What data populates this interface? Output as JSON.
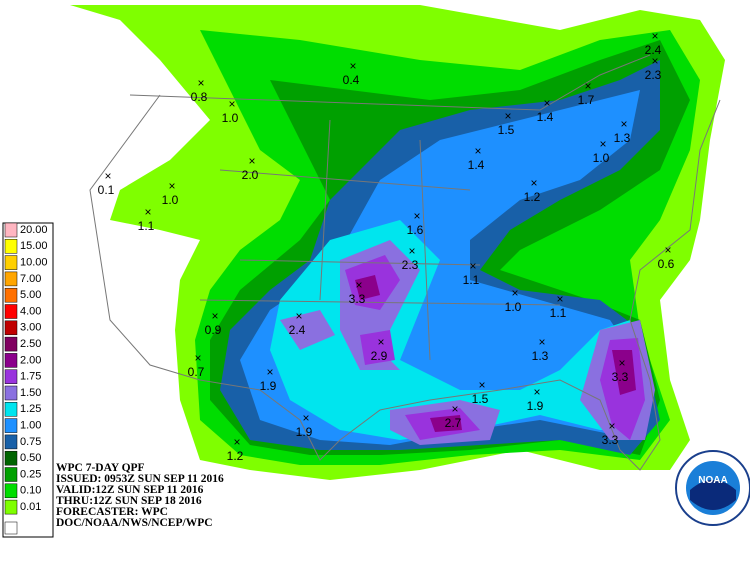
{
  "legend": [
    {
      "label": "20.00",
      "color": "#ffb6c1"
    },
    {
      "label": "15.00",
      "color": "#ffff00"
    },
    {
      "label": "10.00",
      "color": "#ffd000"
    },
    {
      "label": "7.00",
      "color": "#ffa500"
    },
    {
      "label": "5.00",
      "color": "#ff7000"
    },
    {
      "label": "4.00",
      "color": "#ff0000"
    },
    {
      "label": "3.00",
      "color": "#c00000"
    },
    {
      "label": "2.50",
      "color": "#800060"
    },
    {
      "label": "2.00",
      "color": "#8b008b"
    },
    {
      "label": "1.75",
      "color": "#9933dd"
    },
    {
      "label": "1.50",
      "color": "#8a70e0"
    },
    {
      "label": "1.25",
      "color": "#00e5ee"
    },
    {
      "label": "1.00",
      "color": "#1e90ff"
    },
    {
      "label": "0.75",
      "color": "#1860a8"
    },
    {
      "label": "0.50",
      "color": "#006400"
    },
    {
      "label": "0.25",
      "color": "#00a000"
    },
    {
      "label": "0.10",
      "color": "#00dd00"
    },
    {
      "label": "0.01",
      "color": "#7fff00"
    }
  ],
  "info": [
    "WPC 7-DAY QPF",
    "ISSUED: 0953Z SUN SEP 11 2016",
    "VALID:12Z SUN SEP 11 2016",
    "THRU:12Z SUN SEP 18 2016",
    "FORECASTER: WPC",
    "DOC/NOAA/NWS/NCEP/WPC"
  ],
  "logo": "NOAA",
  "maxima": [
    "0.4",
    "2.4",
    "2.3",
    "0.8",
    "1.0",
    "1.7",
    "1.4",
    "1.5",
    "1.3",
    "1.0",
    "0.1",
    "2.0",
    "1.0",
    "1.1",
    "1.4",
    "1.2",
    "1.6",
    "2.3",
    "0.6",
    "1.1",
    "1.0",
    "1.1",
    "3.3",
    "0.9",
    "2.4",
    "2.9",
    "1.3",
    "3.3",
    "0.7",
    "1.9",
    "1.5",
    "1.9",
    "2.7",
    "1.9",
    "3.3",
    "1.2"
  ]
}
